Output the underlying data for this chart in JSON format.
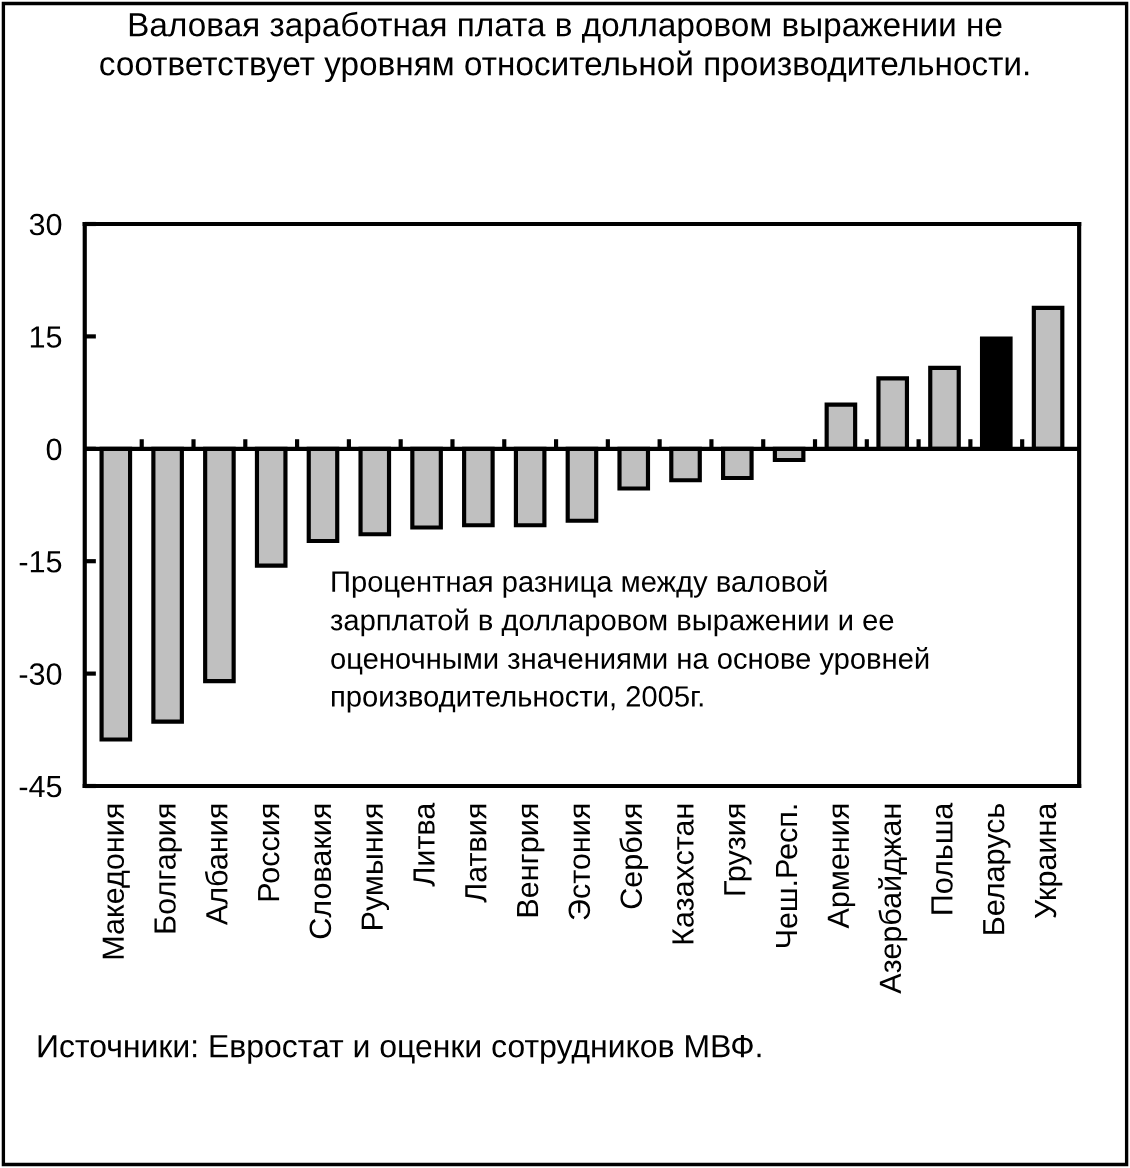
{
  "chart_data": {
    "type": "bar",
    "title": "Валовая заработная плата в долларовом выражении не соответствует уровням относительной производительности.",
    "categories": [
      "Македония",
      "Болгария",
      "Албания",
      "Россия",
      "Словакия",
      "Румыния",
      "Литва",
      "Латвия",
      "Венгрия",
      "Эстония",
      "Сербия",
      "Казахстан",
      "Грузия",
      "Чеш.Респ.",
      "Армения",
      "Азербайджан",
      "Польша",
      "Беларусь",
      "Украина"
    ],
    "values": [
      -38.8,
      -36.4,
      -31,
      -15.6,
      -12.3,
      -11.4,
      -10.5,
      -10.2,
      -10.2,
      -9.6,
      -5.3,
      -4.2,
      -3.9,
      -1.5,
      5.9,
      9.4,
      10.8,
      14.7,
      18.8
    ],
    "colors": [
      "#c0c0c0",
      "#c0c0c0",
      "#c0c0c0",
      "#c0c0c0",
      "#c0c0c0",
      "#c0c0c0",
      "#c0c0c0",
      "#c0c0c0",
      "#c0c0c0",
      "#c0c0c0",
      "#c0c0c0",
      "#c0c0c0",
      "#c0c0c0",
      "#c0c0c0",
      "#c0c0c0",
      "#c0c0c0",
      "#c0c0c0",
      "#000000",
      "#c0c0c0"
    ],
    "ylim": [
      -45,
      30
    ],
    "yticks": [
      -45,
      -30,
      -15,
      0,
      15,
      30
    ],
    "annotations": [
      {
        "text": "Процентная разница между валовой зарплатой в долларовом выражении и ее оценочными значениями на основе уровней производительности, 2005г."
      },
      "Источники: Евростат и оценки сотрудников МВФ."
    ]
  }
}
